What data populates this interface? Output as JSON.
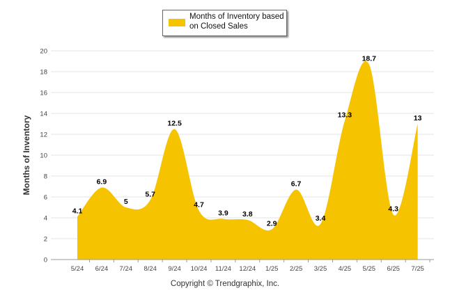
{
  "colors": {
    "area": "#f6c300",
    "grid": "#e3e3e3",
    "axis": "#999999"
  },
  "chart_data": {
    "type": "area",
    "categories": [
      "5/24",
      "6/24",
      "7/24",
      "8/24",
      "9/24",
      "10/24",
      "11/24",
      "12/24",
      "1/25",
      "2/25",
      "3/25",
      "4/25",
      "5/25",
      "6/25",
      "7/25"
    ],
    "series": [
      {
        "name": "Months of Inventory based on Closed Sales",
        "values": [
          4.1,
          6.9,
          5,
          5.7,
          12.5,
          4.7,
          3.9,
          3.8,
          2.9,
          6.7,
          3.4,
          13.3,
          18.7,
          4.3,
          13
        ],
        "labels": [
          "4.1",
          "6.9",
          "5",
          "5.7",
          "12.5",
          "4.7",
          "3.9",
          "3.8",
          "2.9",
          "6.7",
          "3.4",
          "13.3",
          "18.7",
          "4.3",
          "13"
        ]
      }
    ],
    "ylabel": "Months of Inventory",
    "ylim": [
      0,
      20
    ],
    "yticks": [
      "0",
      "2",
      "4",
      "6",
      "8",
      "10",
      "12",
      "14",
      "16",
      "18",
      "20"
    ],
    "grid": true,
    "legend": "top-center"
  },
  "footer": {
    "copyright": "Copyright © Trendgraphix, Inc."
  }
}
